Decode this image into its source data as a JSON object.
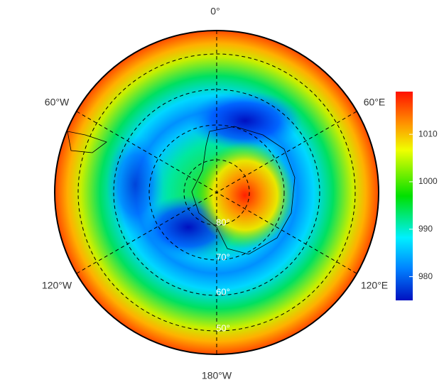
{
  "map": {
    "longitude_labels": [
      "0°",
      "60°E",
      "120°E",
      "180°W",
      "120°W",
      "60°W"
    ],
    "latitude_labels": [
      "80°",
      "70°",
      "60°",
      "50°"
    ],
    "colorbar": {
      "lim": [
        975,
        1019
      ],
      "ticks": [
        980,
        990,
        1000,
        1010
      ]
    }
  }
}
